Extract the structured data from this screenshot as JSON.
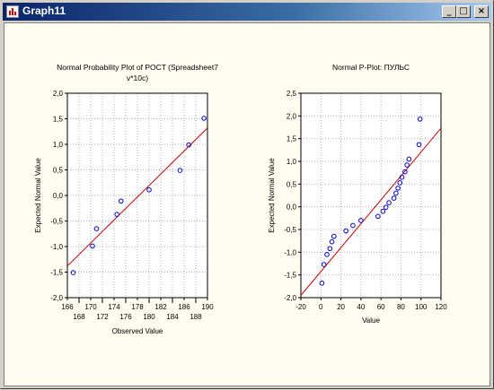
{
  "window": {
    "title": "Graph11",
    "controls": [
      "minimize",
      "maximize",
      "close"
    ]
  },
  "chart_data": [
    {
      "type": "scatter",
      "title": "Normal Probability Plot of POCT (Spreadsheet7 v*10c)",
      "title_lines": [
        "Normal Probability Plot of POCT (Spreadsheet7",
        "v*10c)"
      ],
      "xlabel": "Observed Value",
      "ylabel": "Expected Normal Value",
      "xlim": [
        166,
        190
      ],
      "ylim": [
        -2.0,
        2.0
      ],
      "xticks_upper": [
        "166",
        "170",
        "174",
        "178",
        "182",
        "186",
        "190"
      ],
      "xticks_lower": [
        "168",
        "172",
        "176",
        "180",
        "184",
        "188"
      ],
      "yticks": [
        "-2,0",
        "-1,5",
        "-1,0",
        "-0,5",
        "0,0",
        "0,5",
        "1,0",
        "1,5",
        "2,0"
      ],
      "grid": true,
      "points": [
        {
          "x": 167.0,
          "y": -1.51
        },
        {
          "x": 170.3,
          "y": -0.99
        },
        {
          "x": 171.0,
          "y": -0.65
        },
        {
          "x": 174.5,
          "y": -0.37
        },
        {
          "x": 175.2,
          "y": -0.11
        },
        {
          "x": 180.0,
          "y": 0.11
        },
        {
          "x": 185.3,
          "y": 0.49
        },
        {
          "x": 186.8,
          "y": 0.99
        },
        {
          "x": 189.4,
          "y": 1.51
        }
      ],
      "fit_line": [
        {
          "x": 166,
          "y": -1.38
        },
        {
          "x": 190,
          "y": 1.32
        }
      ],
      "colors": {
        "points": "#0000cc",
        "line": "#cc0000",
        "grid": "#b0b0b0"
      }
    },
    {
      "type": "scatter",
      "title": "Normal P-Plot: ПУЛЬС",
      "title_lines": [
        "Normal P-Plot: ПУЛЬС"
      ],
      "xlabel": "Value",
      "ylabel": "Expected Normal Value",
      "xlim": [
        -20,
        120
      ],
      "ylim": [
        -2.0,
        2.5
      ],
      "xticks": [
        "-20",
        "0",
        "20",
        "40",
        "60",
        "80",
        "100",
        "120"
      ],
      "yticks": [
        "-2,0",
        "-1,5",
        "-1,0",
        "-0,5",
        "0,0",
        "0,5",
        "1,0",
        "1,5",
        "2,0",
        "2,5"
      ],
      "grid": true,
      "points": [
        {
          "x": 1,
          "y": -1.68
        },
        {
          "x": 3,
          "y": -1.27
        },
        {
          "x": 6,
          "y": -1.05
        },
        {
          "x": 9,
          "y": -0.92
        },
        {
          "x": 11,
          "y": -0.77
        },
        {
          "x": 13,
          "y": -0.65
        },
        {
          "x": 25,
          "y": -0.53
        },
        {
          "x": 32,
          "y": -0.41
        },
        {
          "x": 40,
          "y": -0.3
        },
        {
          "x": 57,
          "y": -0.21
        },
        {
          "x": 62,
          "y": -0.1
        },
        {
          "x": 65,
          "y": -0.01
        },
        {
          "x": 68,
          "y": 0.09
        },
        {
          "x": 73,
          "y": 0.19
        },
        {
          "x": 75,
          "y": 0.3
        },
        {
          "x": 77,
          "y": 0.41
        },
        {
          "x": 79,
          "y": 0.53
        },
        {
          "x": 81,
          "y": 0.65
        },
        {
          "x": 84,
          "y": 0.77
        },
        {
          "x": 86,
          "y": 0.92
        },
        {
          "x": 88,
          "y": 1.05
        },
        {
          "x": 98,
          "y": 1.37
        },
        {
          "x": 99,
          "y": 1.93
        }
      ],
      "fit_line": [
        {
          "x": -20,
          "y": -1.95
        },
        {
          "x": 120,
          "y": 1.73
        }
      ],
      "colors": {
        "points": "#0000cc",
        "line": "#cc0000",
        "grid": "#b0b0b0"
      }
    }
  ]
}
